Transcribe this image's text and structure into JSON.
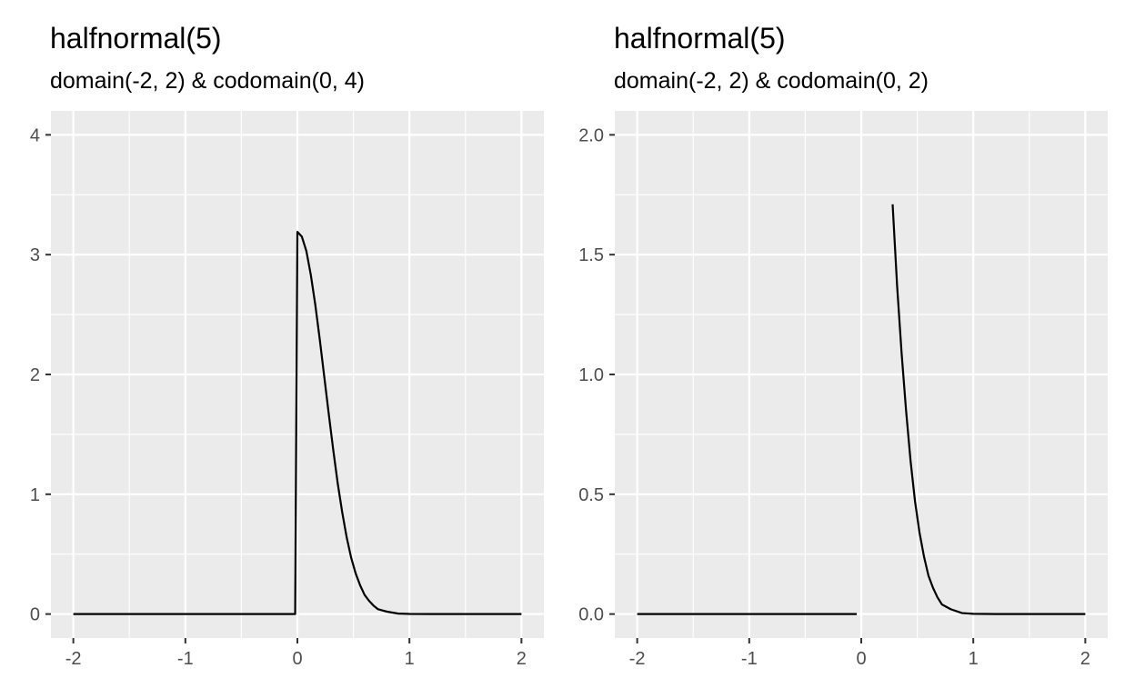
{
  "chart_data": [
    {
      "type": "line",
      "title": "halfnormal(5)",
      "subtitle": "domain(-2, 2) & codomain(0, 4)",
      "xlabel": "",
      "ylabel": "",
      "xlim": [
        -2,
        2
      ],
      "ylim": [
        0,
        4
      ],
      "x_ticks": [
        "-2",
        "-1",
        "0",
        "1",
        "2"
      ],
      "y_ticks": [
        "0",
        "1",
        "2",
        "3",
        "4"
      ],
      "grid": true,
      "series": [
        {
          "color": "#000000",
          "segments": [
            [
              [
                -2,
                0
              ],
              [
                -0.04,
                0
              ],
              [
                -0.02,
                0.0
              ],
              [
                0.0,
                3.19
              ],
              [
                0.04,
                3.15
              ],
              [
                0.08,
                3.03
              ],
              [
                0.12,
                2.83
              ],
              [
                0.16,
                2.58
              ],
              [
                0.2,
                2.29
              ],
              [
                0.24,
                1.98
              ],
              [
                0.28,
                1.67
              ],
              [
                0.32,
                1.37
              ],
              [
                0.36,
                1.09
              ],
              [
                0.4,
                0.85
              ],
              [
                0.44,
                0.64
              ],
              [
                0.48,
                0.47
              ],
              [
                0.52,
                0.34
              ],
              [
                0.56,
                0.24
              ],
              [
                0.6,
                0.16
              ],
              [
                0.64,
                0.11
              ],
              [
                0.68,
                0.07
              ],
              [
                0.72,
                0.04
              ],
              [
                0.76,
                0.03
              ],
              [
                0.8,
                0.02
              ],
              [
                0.9,
                0.004
              ],
              [
                1.0,
                0.001
              ],
              [
                1.2,
                0.0
              ],
              [
                2,
                0
              ]
            ]
          ]
        }
      ]
    },
    {
      "type": "line",
      "title": "halfnormal(5)",
      "subtitle": "domain(-2, 2) & codomain(0, 2)",
      "xlabel": "",
      "ylabel": "",
      "xlim": [
        -2,
        2
      ],
      "ylim": [
        0,
        2
      ],
      "x_ticks": [
        "-2",
        "-1",
        "0",
        "1",
        "2"
      ],
      "y_ticks": [
        "0.0",
        "0.5",
        "1.0",
        "1.5",
        "2.0"
      ],
      "grid": true,
      "series": [
        {
          "color": "#000000",
          "segments": [
            [
              [
                -2,
                0
              ],
              [
                -0.04,
                0
              ]
            ],
            [
              [
                0.28,
                1.71
              ],
              [
                0.32,
                1.37
              ],
              [
                0.36,
                1.09
              ],
              [
                0.4,
                0.85
              ],
              [
                0.44,
                0.64
              ],
              [
                0.48,
                0.47
              ],
              [
                0.52,
                0.34
              ],
              [
                0.56,
                0.24
              ],
              [
                0.6,
                0.16
              ],
              [
                0.64,
                0.11
              ],
              [
                0.68,
                0.07
              ],
              [
                0.72,
                0.04
              ],
              [
                0.76,
                0.03
              ],
              [
                0.8,
                0.02
              ],
              [
                0.9,
                0.004
              ],
              [
                1.0,
                0.001
              ],
              [
                1.2,
                0.0
              ],
              [
                2,
                0
              ]
            ]
          ]
        }
      ]
    }
  ]
}
